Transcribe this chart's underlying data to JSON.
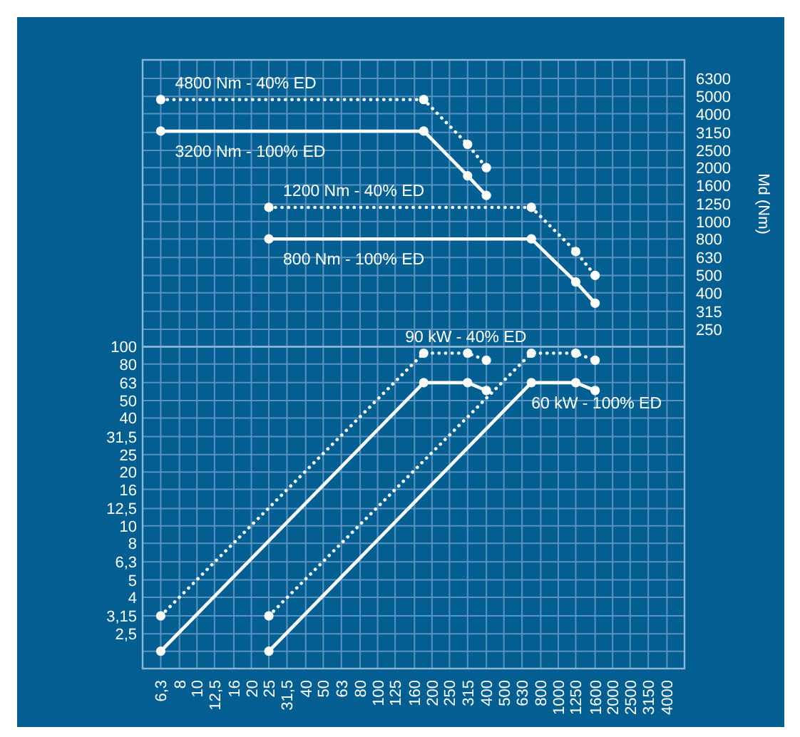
{
  "chart_data": [
    {
      "type": "line",
      "ylabel": "Md (Nm)",
      "log": "xy",
      "grid": true,
      "marker": "circle",
      "tick_labels": "y",
      "xlim": [
        5,
        5000
      ],
      "xticks": [
        5,
        6.3,
        8,
        10,
        12.5,
        16,
        20,
        25,
        31.5,
        40,
        50,
        63,
        80,
        100,
        125,
        160,
        200,
        250,
        315,
        400,
        500,
        630,
        800,
        1000,
        1250,
        1600,
        2000,
        2500,
        3150,
        4000,
        5000
      ],
      "ylim": [
        200,
        8000
      ],
      "yticks": [
        250,
        315,
        400,
        500,
        630,
        800,
        1000,
        1250,
        1600,
        2000,
        2500,
        3150,
        4000,
        5000,
        6300
      ],
      "series": [
        {
          "name": "4800 Nm - 40% ED",
          "line_style": "dotted",
          "color": "#ffffff",
          "x": [
            6.3,
            180,
            315,
            400
          ],
          "values": [
            4800,
            4800,
            2700,
            2000
          ]
        },
        {
          "name": "3200 Nm - 100% ED",
          "line_style": "solid",
          "color": "#ffffff",
          "x": [
            6.3,
            180,
            315,
            400
          ],
          "values": [
            3200,
            3200,
            1800,
            1400
          ]
        },
        {
          "name": "1200 Nm - 40% ED",
          "line_style": "dotted",
          "color": "#ffffff",
          "x": [
            25,
            710,
            1250,
            1600
          ],
          "values": [
            1200,
            1200,
            680,
            500
          ]
        },
        {
          "name": "800 Nm - 100% ED",
          "line_style": "solid",
          "color": "#ffffff",
          "x": [
            25,
            710,
            1250,
            1600
          ],
          "values": [
            800,
            800,
            460,
            350
          ]
        }
      ]
    },
    {
      "type": "line",
      "log": "xy",
      "grid": true,
      "marker": "circle",
      "xlim": [
        5,
        5000
      ],
      "xticks": [
        {
          "value": 5,
          "label": null
        },
        {
          "value": 6.3,
          "label": "6,3"
        },
        8,
        10,
        {
          "value": 12.5,
          "label": "12,5"
        },
        16,
        20,
        25,
        {
          "value": 31.5,
          "label": "31,5"
        },
        40,
        50,
        63,
        80,
        100,
        125,
        160,
        200,
        250,
        315,
        400,
        500,
        630,
        800,
        1000,
        1250,
        1600,
        2000,
        2500,
        3150,
        4000,
        {
          "value": 5000,
          "label": null
        }
      ],
      "ylim": [
        1.6,
        100
      ],
      "yticks": [
        {
          "value": 2,
          "label": null
        },
        {
          "value": 2.5,
          "label": "2,5"
        },
        {
          "value": 3.15,
          "label": "3,15"
        },
        4,
        5,
        {
          "value": 6.3,
          "label": "6,3"
        },
        8,
        10,
        {
          "value": 12.5,
          "label": "12,5"
        },
        16,
        20,
        25,
        {
          "value": 31.5,
          "label": "31,5"
        },
        40,
        50,
        63,
        80,
        100
      ],
      "series": [
        {
          "name": "90 kW - 40% ED",
          "line_style": "dotted",
          "color": "#ffffff",
          "x": [
            6.3,
            180,
            315,
            400
          ],
          "values": [
            3.15,
            92,
            92,
            84
          ]
        },
        {
          "line_style": "solid",
          "color": "#ffffff",
          "x": [
            6.3,
            180,
            315,
            400
          ],
          "values": [
            2,
            63,
            63,
            57
          ]
        },
        {
          "line_style": "dotted",
          "color": "#ffffff",
          "x": [
            25,
            710,
            1250,
            1600
          ],
          "values": [
            3.15,
            92,
            92,
            84
          ]
        },
        {
          "name": "60 kW - 100% ED",
          "line_style": "solid",
          "color": "#ffffff",
          "x": [
            25,
            710,
            1250,
            1600
          ],
          "values": [
            2,
            63,
            63,
            57
          ]
        }
      ]
    }
  ]
}
